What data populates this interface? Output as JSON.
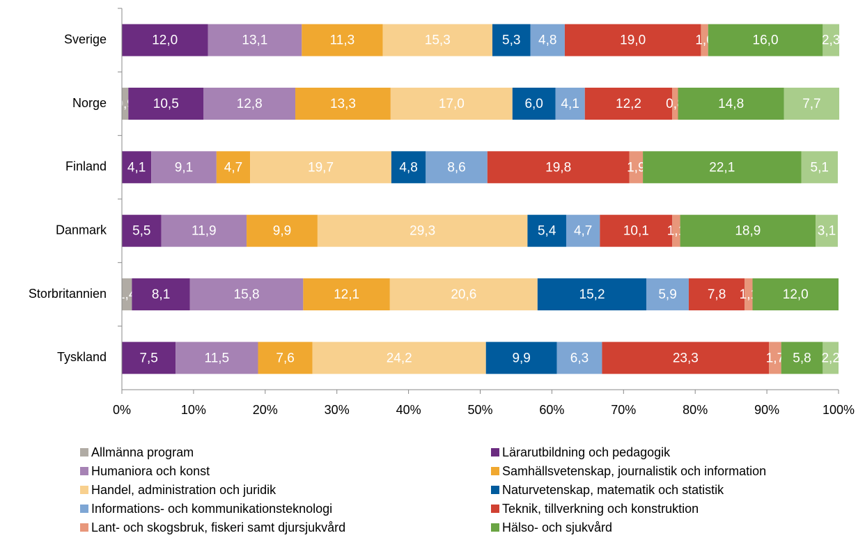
{
  "chart_data": {
    "type": "stacked-barh",
    "categories": [
      "Sverige",
      "Norge",
      "Finland",
      "Danmark",
      "Storbritannien",
      "Tyskland"
    ],
    "xlim": [
      0,
      100
    ],
    "xticks": [
      {
        "value": 0,
        "label": "0%"
      },
      {
        "value": 10,
        "label": "10%"
      },
      {
        "value": 20,
        "label": "20%"
      },
      {
        "value": 30,
        "label": "30%"
      },
      {
        "value": 40,
        "label": "40%"
      },
      {
        "value": 50,
        "label": "50%"
      },
      {
        "value": 60,
        "label": "60%"
      },
      {
        "value": 70,
        "label": "70%"
      },
      {
        "value": 80,
        "label": "80%"
      },
      {
        "value": 90,
        "label": "90%"
      },
      {
        "value": 100,
        "label": "100%"
      }
    ],
    "series": [
      {
        "name": "Allmänna program",
        "color": "#b0aba4",
        "values": [
          null,
          0.9,
          null,
          null,
          1.4,
          null
        ],
        "value_labels": [
          null,
          "0,9",
          null,
          null,
          "1,4",
          null
        ]
      },
      {
        "name": "Lärarutbildning och pedagogik",
        "color": "#6b2c80",
        "values": [
          12.0,
          10.5,
          4.1,
          5.5,
          8.1,
          7.5
        ],
        "value_labels": [
          "12,0",
          "10,5",
          "4,1",
          "5,5",
          "8,1",
          "7,5"
        ]
      },
      {
        "name": "Humaniora och konst",
        "color": "#a682b4",
        "values": [
          13.1,
          12.8,
          9.1,
          11.9,
          15.8,
          11.5
        ],
        "value_labels": [
          "13,1",
          "12,8",
          "9,1",
          "11,9",
          "15,8",
          "11,5"
        ]
      },
      {
        "name": "Samhällsvetenskap, journalistik och information",
        "color": "#f0a830",
        "values": [
          11.3,
          13.3,
          4.7,
          9.9,
          12.1,
          7.6
        ],
        "value_labels": [
          "11,3",
          "13,3",
          "4,7",
          "9,9",
          "12,1",
          "7,6"
        ]
      },
      {
        "name": "Handel, administration och juridik",
        "color": "#f8d08e",
        "values": [
          15.3,
          17.0,
          19.7,
          29.3,
          20.6,
          24.2
        ],
        "value_labels": [
          "15,3",
          "17,0",
          "19,7",
          "29,3",
          "20,6",
          "24,2"
        ]
      },
      {
        "name": "Naturvetenskap, matematik och statistik",
        "color": "#005b9d",
        "values": [
          5.3,
          6.0,
          4.8,
          5.4,
          15.2,
          9.9
        ],
        "value_labels": [
          "5,3",
          "6,0",
          "4,8",
          "5,4",
          "15,2",
          "9,9"
        ]
      },
      {
        "name": "Informations- och kommunikationsteknologi",
        "color": "#7ea6d4",
        "values": [
          4.8,
          4.1,
          8.6,
          4.7,
          5.9,
          6.3
        ],
        "value_labels": [
          "4,8",
          "4,1",
          "8,6",
          "4,7",
          "5,9",
          "6,3"
        ]
      },
      {
        "name": "Teknik, tillverkning och konstruktion",
        "color": "#d04132",
        "values": [
          19.0,
          12.2,
          19.8,
          10.1,
          7.8,
          23.3
        ],
        "value_labels": [
          "19,0",
          "12,2",
          "19,8",
          "10,1",
          "7,8",
          "23,3"
        ]
      },
      {
        "name": "Lant- och skogsbruk, fiskeri samt djursjukvård",
        "color": "#e8977b",
        "values": [
          1.0,
          0.8,
          1.9,
          1.1,
          1.1,
          1.7
        ],
        "value_labels": [
          "1,0",
          "0,8",
          "1,9",
          "1,1",
          "1,1",
          "1,7"
        ]
      },
      {
        "name": "Hälso- och sjukvård",
        "color": "#6aa443",
        "values": [
          16.0,
          14.8,
          22.1,
          18.9,
          12.0,
          5.8
        ],
        "value_labels": [
          "16,0",
          "14,8",
          "22,1",
          "18,9",
          "12,0",
          "5,8"
        ]
      },
      {
        "name": null,
        "color": "#a9cd8b",
        "values": [
          2.3,
          7.7,
          5.1,
          3.1,
          null,
          2.2
        ],
        "value_labels": [
          "2,3",
          "7,7",
          "5,1",
          "3,1",
          null,
          "2,2"
        ]
      }
    ]
  }
}
